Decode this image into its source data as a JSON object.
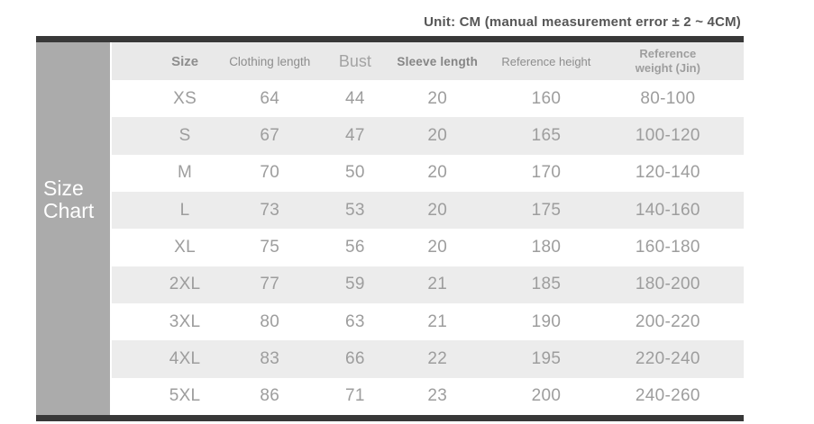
{
  "unit_note": "Unit: CM (manual measurement error ± 2 ~ 4CM)",
  "sidebar": {
    "line1": "Size",
    "line2": "Chart"
  },
  "chart_data": {
    "type": "table",
    "title": "Size Chart",
    "unit_note": "Unit: CM (manual measurement error ± 2 ~ 4CM)",
    "columns": [
      "Size",
      "Clothing length",
      "Bust",
      "Sleeve length",
      "Reference height",
      "Reference weight (Jin)"
    ],
    "rows": [
      [
        "XS",
        "64",
        "44",
        "20",
        "160",
        "80-100"
      ],
      [
        "S",
        "67",
        "47",
        "20",
        "165",
        "100-120"
      ],
      [
        "M",
        "70",
        "50",
        "20",
        "170",
        "120-140"
      ],
      [
        "L",
        "73",
        "53",
        "20",
        "175",
        "140-160"
      ],
      [
        "XL",
        "75",
        "56",
        "20",
        "180",
        "160-180"
      ],
      [
        "2XL",
        "77",
        "59",
        "21",
        "185",
        "180-200"
      ],
      [
        "3XL",
        "80",
        "63",
        "21",
        "190",
        "200-220"
      ],
      [
        "4XL",
        "83",
        "66",
        "22",
        "195",
        "220-240"
      ],
      [
        "5XL",
        "86",
        "71",
        "23",
        "200",
        "240-260"
      ]
    ]
  },
  "colors": {
    "top_bottom_bar": "#383838",
    "sidebar_bg": "#ababab",
    "sidebar_text": "#ffffff",
    "header_bg": "#e9e9e9",
    "alt_row_bg": "#ececec",
    "row_bg": "#ffffff",
    "data_text": "#9d9d9d",
    "note_text": "#565656"
  }
}
